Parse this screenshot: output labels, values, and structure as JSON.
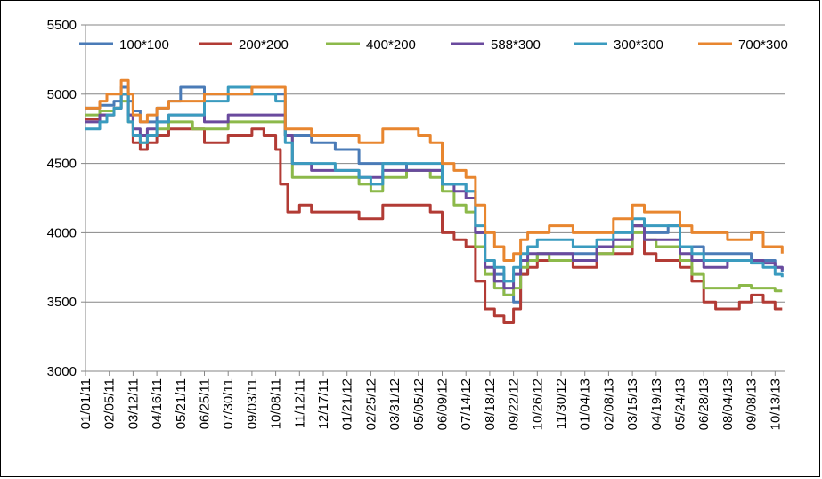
{
  "chart_data": {
    "type": "line",
    "title": "",
    "xlabel": "",
    "ylabel": "",
    "ylim": [
      3000,
      5500
    ],
    "y_ticks": [
      "3000",
      "3500",
      "4000",
      "4500",
      "5000",
      "5500"
    ],
    "x_tick_labels": [
      "01/01/11",
      "02/05/11",
      "03/12/11",
      "04/16/11",
      "05/21/11",
      "06/25/11",
      "07/30/11",
      "09/03/11",
      "10/08/11",
      "11/12/11",
      "12/17/11",
      "01/21/12",
      "02/25/12",
      "03/31/12",
      "05/05/12",
      "06/09/12",
      "07/14/12",
      "08/18/12",
      "09/22/12",
      "10/26/12",
      "11/30/12",
      "01/04/13",
      "02/08/13",
      "03/15/13",
      "04/19/13",
      "05/24/13",
      "06/28/13",
      "08/04/13",
      "09/08/13",
      "10/13/13"
    ],
    "grid": "horizontal",
    "legend_position": "top",
    "x_index_note_hidden": "",
    "series": [
      {
        "name": "100*100",
        "color": "#4a7bb7",
        "x": [
          0,
          0.3,
          0.6,
          0.9,
          1.2,
          1.5,
          1.8,
          2.0,
          2.3,
          2.6,
          3.0,
          3.5,
          4.0,
          4.5,
          5.0,
          5.5,
          6.0,
          6.5,
          7.0,
          7.5,
          8.0,
          8.4,
          8.7,
          9.0,
          9.5,
          10.0,
          10.5,
          11.0,
          11.5,
          12.0,
          12.5,
          13.0,
          13.5,
          14.0,
          14.5,
          15.0,
          15.5,
          16.0,
          16.4,
          16.8,
          17.2,
          17.6,
          18.0,
          18.3,
          18.6,
          19.0,
          19.5,
          20.0,
          20.5,
          21.0,
          21.5,
          22.0,
          22.2,
          22.5,
          23.0,
          23.5,
          24.0,
          24.5,
          25.0,
          25.5,
          26.0,
          26.5,
          27.0,
          27.5,
          28.0,
          28.5,
          29.0,
          29.3
        ],
        "values": [
          4900,
          4900,
          4920,
          4920,
          4950,
          5050,
          4950,
          4880,
          4800,
          4800,
          4900,
          4950,
          5050,
          5050,
          5000,
          5000,
          5000,
          5000,
          5000,
          5000,
          5000,
          4700,
          4700,
          4700,
          4650,
          4650,
          4600,
          4600,
          4500,
          4500,
          4500,
          4500,
          4450,
          4450,
          4450,
          4350,
          4350,
          4300,
          4000,
          3800,
          3700,
          3550,
          3500,
          3700,
          3800,
          3850,
          3850,
          3850,
          3850,
          3850,
          3900,
          3900,
          3950,
          3950,
          4050,
          4000,
          4000,
          4050,
          3900,
          3900,
          3850,
          3850,
          3850,
          3850,
          3800,
          3800,
          3750,
          3720
        ]
      },
      {
        "name": "200*200",
        "color": "#b23b35",
        "x": [
          0,
          0.3,
          0.6,
          0.9,
          1.2,
          1.5,
          1.8,
          2.0,
          2.3,
          2.6,
          3.0,
          3.5,
          4.0,
          4.5,
          5.0,
          5.5,
          6.0,
          6.5,
          7.0,
          7.5,
          8.0,
          8.2,
          8.5,
          9.0,
          9.5,
          10.0,
          10.5,
          11.0,
          11.5,
          12.0,
          12.5,
          13.0,
          13.5,
          14.0,
          14.5,
          15.0,
          15.5,
          16.0,
          16.4,
          16.8,
          17.2,
          17.6,
          18.0,
          18.3,
          18.6,
          19.0,
          19.5,
          20.0,
          20.5,
          21.0,
          21.5,
          22.0,
          22.2,
          22.5,
          23.0,
          23.5,
          24.0,
          24.5,
          25.0,
          25.5,
          26.0,
          26.5,
          27.0,
          27.5,
          28.0,
          28.5,
          29.0,
          29.3
        ],
        "values": [
          4820,
          4820,
          4850,
          4850,
          4900,
          5000,
          4850,
          4650,
          4600,
          4650,
          4700,
          4750,
          4750,
          4750,
          4650,
          4650,
          4700,
          4700,
          4750,
          4700,
          4600,
          4350,
          4150,
          4200,
          4150,
          4150,
          4150,
          4150,
          4100,
          4100,
          4200,
          4200,
          4200,
          4200,
          4150,
          4000,
          3950,
          3900,
          3650,
          3450,
          3400,
          3350,
          3450,
          3700,
          3750,
          3800,
          3800,
          3800,
          3750,
          3750,
          3850,
          3850,
          3850,
          3850,
          4050,
          3850,
          3800,
          3800,
          3750,
          3650,
          3500,
          3450,
          3450,
          3500,
          3550,
          3500,
          3450,
          3450
        ]
      },
      {
        "name": "400*200",
        "color": "#8cb94a",
        "x": [
          0,
          0.3,
          0.6,
          0.9,
          1.2,
          1.5,
          1.8,
          2.0,
          2.3,
          2.6,
          3.0,
          3.5,
          4.0,
          4.5,
          5.0,
          5.5,
          6.0,
          6.5,
          7.0,
          7.5,
          8.0,
          8.4,
          8.7,
          9.0,
          9.5,
          10.0,
          10.5,
          11.0,
          11.5,
          12.0,
          12.5,
          13.0,
          13.5,
          14.0,
          14.5,
          15.0,
          15.5,
          16.0,
          16.4,
          16.8,
          17.2,
          17.6,
          18.0,
          18.3,
          18.6,
          19.0,
          19.5,
          20.0,
          20.5,
          21.0,
          21.5,
          22.0,
          22.2,
          22.5,
          23.0,
          23.5,
          24.0,
          24.5,
          25.0,
          25.5,
          26.0,
          26.5,
          27.0,
          27.5,
          28.0,
          28.5,
          29.0,
          29.3
        ],
        "values": [
          4850,
          4850,
          4880,
          4880,
          4900,
          4950,
          4800,
          4700,
          4650,
          4700,
          4750,
          4800,
          4800,
          4750,
          4750,
          4750,
          4800,
          4800,
          4800,
          4800,
          4800,
          4700,
          4400,
          4400,
          4400,
          4400,
          4400,
          4400,
          4350,
          4300,
          4400,
          4400,
          4450,
          4450,
          4400,
          4300,
          4200,
          4150,
          3900,
          3700,
          3600,
          3550,
          3600,
          3750,
          3800,
          3850,
          3800,
          3800,
          3800,
          3800,
          3850,
          3850,
          3900,
          3900,
          4000,
          3950,
          3900,
          3900,
          3800,
          3700,
          3600,
          3600,
          3600,
          3620,
          3600,
          3600,
          3580,
          3580
        ]
      },
      {
        "name": "588*300",
        "color": "#6a4a9e",
        "x": [
          0,
          0.3,
          0.6,
          0.9,
          1.2,
          1.5,
          1.8,
          2.0,
          2.3,
          2.6,
          3.0,
          3.5,
          4.0,
          4.5,
          5.0,
          5.5,
          6.0,
          6.5,
          7.0,
          7.5,
          8.0,
          8.4,
          8.7,
          9.0,
          9.5,
          10.0,
          10.5,
          11.0,
          11.5,
          12.0,
          12.5,
          13.0,
          13.5,
          14.0,
          14.5,
          15.0,
          15.5,
          16.0,
          16.4,
          16.8,
          17.2,
          17.6,
          18.0,
          18.3,
          18.6,
          19.0,
          19.5,
          20.0,
          20.5,
          21.0,
          21.5,
          22.0,
          22.2,
          22.5,
          23.0,
          23.5,
          24.0,
          24.5,
          25.0,
          25.5,
          26.0,
          26.5,
          27.0,
          27.5,
          28.0,
          28.5,
          29.0,
          29.3
        ],
        "values": [
          4800,
          4800,
          4850,
          4850,
          4900,
          5000,
          4850,
          4750,
          4700,
          4750,
          4800,
          4850,
          4850,
          4850,
          4800,
          4800,
          4850,
          4850,
          4850,
          4850,
          4850,
          4700,
          4500,
          4500,
          4450,
          4450,
          4450,
          4450,
          4400,
          4400,
          4450,
          4450,
          4450,
          4450,
          4450,
          4350,
          4300,
          4250,
          4000,
          3750,
          3650,
          3600,
          3700,
          3800,
          3850,
          3850,
          3850,
          3850,
          3800,
          3800,
          3900,
          3900,
          3950,
          3950,
          4050,
          3950,
          3950,
          3950,
          3850,
          3800,
          3750,
          3750,
          3800,
          3800,
          3800,
          3780,
          3750,
          3730
        ]
      },
      {
        "name": "300*300",
        "color": "#3a9bbf",
        "x": [
          0,
          0.3,
          0.6,
          0.9,
          1.2,
          1.5,
          1.8,
          2.0,
          2.3,
          2.6,
          3.0,
          3.5,
          4.0,
          4.5,
          5.0,
          5.5,
          6.0,
          6.5,
          7.0,
          7.5,
          8.0,
          8.4,
          8.7,
          9.0,
          9.5,
          10.0,
          10.5,
          11.0,
          11.5,
          12.0,
          12.5,
          13.0,
          13.5,
          14.0,
          14.5,
          15.0,
          15.5,
          16.0,
          16.4,
          16.8,
          17.2,
          17.6,
          18.0,
          18.3,
          18.6,
          19.0,
          19.5,
          20.0,
          20.5,
          21.0,
          21.5,
          22.0,
          22.2,
          22.5,
          23.0,
          23.5,
          24.0,
          24.5,
          25.0,
          25.5,
          26.0,
          26.5,
          27.0,
          27.5,
          28.0,
          28.5,
          29.0,
          29.3
        ],
        "values": [
          4750,
          4750,
          4800,
          4850,
          4900,
          5000,
          4800,
          4700,
          4650,
          4700,
          4800,
          4850,
          4850,
          4850,
          4950,
          4950,
          5050,
          5050,
          5000,
          5000,
          4950,
          4650,
          4500,
          4500,
          4500,
          4500,
          4450,
          4450,
          4400,
          4350,
          4500,
          4500,
          4500,
          4500,
          4500,
          4350,
          4350,
          4300,
          4050,
          3800,
          3750,
          3650,
          3750,
          3850,
          3900,
          3950,
          3950,
          3950,
          3900,
          3900,
          3950,
          3950,
          4000,
          4000,
          4100,
          4050,
          4050,
          4050,
          3900,
          3850,
          3800,
          3800,
          3800,
          3800,
          3780,
          3750,
          3700,
          3680
        ]
      },
      {
        "name": "700*300",
        "color": "#e8862f",
        "x": [
          0,
          0.3,
          0.6,
          0.9,
          1.2,
          1.5,
          1.8,
          2.0,
          2.3,
          2.6,
          3.0,
          3.5,
          4.0,
          4.5,
          5.0,
          5.5,
          6.0,
          6.5,
          7.0,
          7.5,
          8.0,
          8.4,
          8.7,
          9.0,
          9.5,
          10.0,
          10.5,
          11.0,
          11.5,
          12.0,
          12.5,
          13.0,
          13.5,
          14.0,
          14.5,
          15.0,
          15.5,
          16.0,
          16.4,
          16.8,
          17.2,
          17.6,
          18.0,
          18.3,
          18.6,
          19.0,
          19.5,
          20.0,
          20.5,
          21.0,
          21.5,
          22.0,
          22.2,
          22.5,
          23.0,
          23.5,
          24.0,
          24.5,
          25.0,
          25.5,
          26.0,
          26.5,
          27.0,
          27.5,
          28.0,
          28.5,
          29.0,
          29.3
        ],
        "values": [
          4900,
          4900,
          4950,
          5000,
          5000,
          5100,
          5000,
          4850,
          4800,
          4850,
          4900,
          4950,
          4950,
          4950,
          5000,
          5000,
          5000,
          5000,
          5050,
          5050,
          5050,
          4750,
          4750,
          4750,
          4700,
          4700,
          4700,
          4700,
          4650,
          4650,
          4750,
          4750,
          4750,
          4700,
          4650,
          4500,
          4450,
          4400,
          4200,
          4000,
          3900,
          3800,
          3850,
          3950,
          4000,
          4000,
          4050,
          4050,
          4000,
          4000,
          4000,
          4000,
          4100,
          4100,
          4200,
          4150,
          4150,
          4150,
          4050,
          4000,
          4000,
          4000,
          3950,
          3950,
          4000,
          3900,
          3900,
          3850
        ]
      }
    ]
  }
}
